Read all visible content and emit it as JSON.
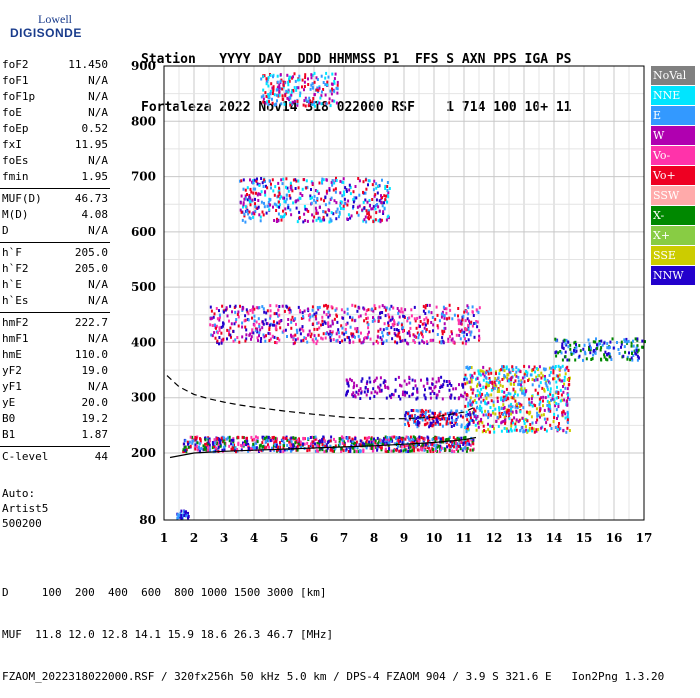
{
  "logo": {
    "line1": "Lowell",
    "line2": "DIGISONDE"
  },
  "header": {
    "row1": [
      "Station",
      "YYYY DAY",
      "DDD HHMMSS P1",
      "FFS S AXN PPS IGA PS"
    ],
    "row2": [
      "Fortaleza",
      "2022 Nov14",
      "318 022000 RSF",
      "1 714 100 10+ 11"
    ]
  },
  "params": [
    {
      "name": "foF2",
      "value": "11.450"
    },
    {
      "name": "foF1",
      "value": "N/A"
    },
    {
      "name": "foF1p",
      "value": "N/A"
    },
    {
      "name": "foE",
      "value": "N/A"
    },
    {
      "name": "foEp",
      "value": "0.52"
    },
    {
      "name": "fxI",
      "value": "11.95"
    },
    {
      "name": "foEs",
      "value": "N/A"
    },
    {
      "name": "fmin",
      "value": "1.95"
    },
    {
      "name": "MUF(D)",
      "value": "46.73"
    },
    {
      "name": "M(D)",
      "value": "4.08"
    },
    {
      "name": "D",
      "value": "N/A"
    },
    {
      "name": "h`F",
      "value": "205.0"
    },
    {
      "name": "h`F2",
      "value": "205.0"
    },
    {
      "name": "h`E",
      "value": "N/A"
    },
    {
      "name": "h`Es",
      "value": "N/A"
    },
    {
      "name": "hmF2",
      "value": "222.7"
    },
    {
      "name": "hmF1",
      "value": "N/A"
    },
    {
      "name": "hmE",
      "value": "110.0"
    },
    {
      "name": "yF2",
      "value": "19.0"
    },
    {
      "name": "yF1",
      "value": "N/A"
    },
    {
      "name": "yE",
      "value": "20.0"
    },
    {
      "name": "B0",
      "value": "19.2"
    },
    {
      "name": "B1",
      "value": "1.87"
    },
    {
      "name": "C-level",
      "value": "44"
    }
  ],
  "auto": {
    "line1": "Auto:",
    "line2": "Artist5",
    "line3": "500200"
  },
  "legend": [
    {
      "label": "NoVal",
      "color": "#808080"
    },
    {
      "label": "NNE",
      "color": "#00e5ff"
    },
    {
      "label": "E",
      "color": "#3399ff"
    },
    {
      "label": "W",
      "color": "#b000b0"
    },
    {
      "label": "Vo-",
      "color": "#ff33aa"
    },
    {
      "label": "Vo+",
      "color": "#ee0022"
    },
    {
      "label": "SSW",
      "color": "#ffaaaa"
    },
    {
      "label": "X-",
      "color": "#008800"
    },
    {
      "label": "X+",
      "color": "#88cc44"
    },
    {
      "label": "SSE",
      "color": "#cccc00"
    },
    {
      "label": "NNW",
      "color": "#2200cc"
    }
  ],
  "footer": {
    "line1": "D     100  200  400  600  800 1000 1500 3000 [km]",
    "line2": "MUF  11.8 12.0 12.8 14.1 15.9 18.6 26.3 46.7 [MHz]",
    "line3": "FZAOM_2022318022000.RSF / 320fx256h 50 kHz 5.0 km / DPS-4 FZAOM 904 / 3.9 S 321.6 E   Ion2Png 1.3.20"
  },
  "chart_data": {
    "type": "scatter",
    "x_ticks": [
      1,
      2,
      3,
      4,
      5,
      6,
      7,
      8,
      9,
      10,
      11,
      12,
      13,
      14,
      15,
      16,
      17
    ],
    "y_ticks": [
      80,
      200,
      300,
      400,
      500,
      600,
      700,
      800,
      900
    ],
    "xlim": [
      1,
      17
    ],
    "ylim": [
      80,
      900
    ],
    "grid": true,
    "traces": [
      {
        "name": "o-trace",
        "style": "solid",
        "x": [
          1.2,
          2,
          3,
          4,
          5,
          6,
          7,
          8,
          9,
          10,
          11,
          11.4
        ],
        "y": [
          192,
          200,
          203,
          205,
          207,
          209,
          211,
          213,
          216,
          219,
          224,
          228
        ]
      },
      {
        "name": "profile",
        "style": "dashed",
        "x": [
          1.1,
          1.5,
          2,
          2.5,
          3,
          3.5,
          4,
          5,
          6,
          7,
          8,
          9,
          10,
          11,
          11.45
        ],
        "y": [
          340,
          320,
          306,
          298,
          292,
          287,
          283,
          276,
          270,
          265,
          262,
          262,
          265,
          274,
          285
        ]
      }
    ],
    "echo_regions": [
      {
        "xr": [
          1.6,
          11.3
        ],
        "yr": [
          205,
          232
        ],
        "colors": [
          "#ee0022",
          "#2200cc",
          "#008800",
          "#ff33aa",
          "#3399ff"
        ],
        "n": 900
      },
      {
        "xr": [
          2.5,
          11.5
        ],
        "yr": [
          400,
          470
        ],
        "colors": [
          "#ee0022",
          "#b000b0",
          "#2200cc",
          "#3399ff",
          "#ff33aa"
        ],
        "n": 700
      },
      {
        "xr": [
          3.5,
          8.5
        ],
        "yr": [
          620,
          700
        ],
        "colors": [
          "#ee0022",
          "#b000b0",
          "#2200cc",
          "#3399ff",
          "#00e5ff"
        ],
        "n": 450
      },
      {
        "xr": [
          4.2,
          6.8
        ],
        "yr": [
          830,
          890
        ],
        "colors": [
          "#ee0022",
          "#3399ff",
          "#00e5ff",
          "#b000b0"
        ],
        "n": 220
      },
      {
        "xr": [
          11,
          14.5
        ],
        "yr": [
          240,
          360
        ],
        "colors": [
          "#b000b0",
          "#3399ff",
          "#ee0022",
          "#00e5ff",
          "#cccc00"
        ],
        "n": 650
      },
      {
        "xr": [
          7,
          11
        ],
        "yr": [
          300,
          340
        ],
        "colors": [
          "#2200cc",
          "#b000b0"
        ],
        "n": 160
      },
      {
        "xr": [
          14,
          17
        ],
        "yr": [
          370,
          410
        ],
        "colors": [
          "#2200cc",
          "#3399ff",
          "#008800"
        ],
        "n": 160
      },
      {
        "xr": [
          9,
          11.3
        ],
        "yr": [
          250,
          280
        ],
        "colors": [
          "#2200cc",
          "#3399ff",
          "#ee0022"
        ],
        "n": 160
      },
      {
        "xr": [
          1.4,
          1.8
        ],
        "yr": [
          85,
          100
        ],
        "colors": [
          "#3399ff",
          "#2200cc"
        ],
        "n": 30
      }
    ]
  }
}
